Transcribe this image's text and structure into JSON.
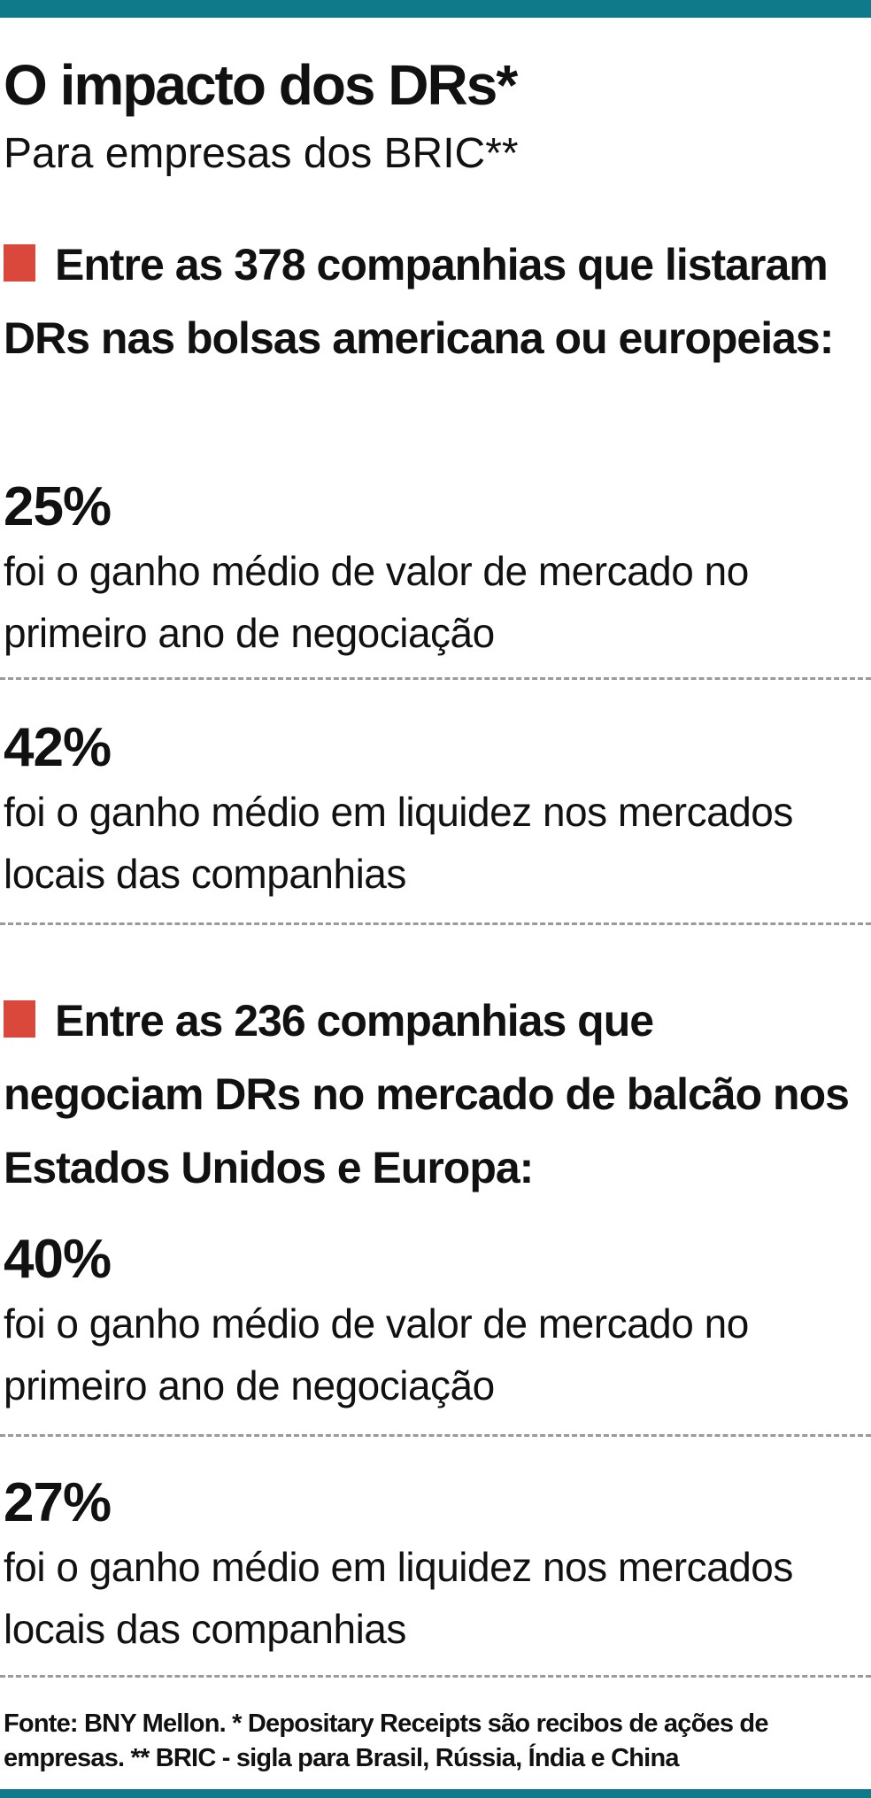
{
  "colors": {
    "accent_bar": "#0f7a8a",
    "marker": "#d9483b",
    "text": "#111111",
    "divider": "#9a9a9a"
  },
  "header": {
    "title": "O impacto dos DRs*",
    "subtitle": "Para empresas dos BRIC**"
  },
  "sections": [
    {
      "heading": "Entre as 378 companhias que listaram DRs nas bolsas americana ou europeias:",
      "stats": [
        {
          "value": "25%",
          "description": "foi o ganho médio de valor de mercado no primeiro ano de negociação"
        },
        {
          "value": "42%",
          "description": "foi o ganho médio em liquidez nos mercados locais das companhias"
        }
      ]
    },
    {
      "heading": "Entre as 236 companhias que negociam DRs no mercado de balcão nos Estados Unidos e Europa:",
      "stats": [
        {
          "value": "40%",
          "description": "foi o ganho médio de valor de mercado no primeiro ano de negociação"
        },
        {
          "value": "27%",
          "description": "foi o ganho médio em liquidez nos mercados locais das companhias"
        }
      ]
    }
  ],
  "footnote": "Fonte: BNY Mellon. * Depositary Receipts são recibos de ações de empresas. ** BRIC  - sigla para Brasil, Rússia, Índia e China"
}
